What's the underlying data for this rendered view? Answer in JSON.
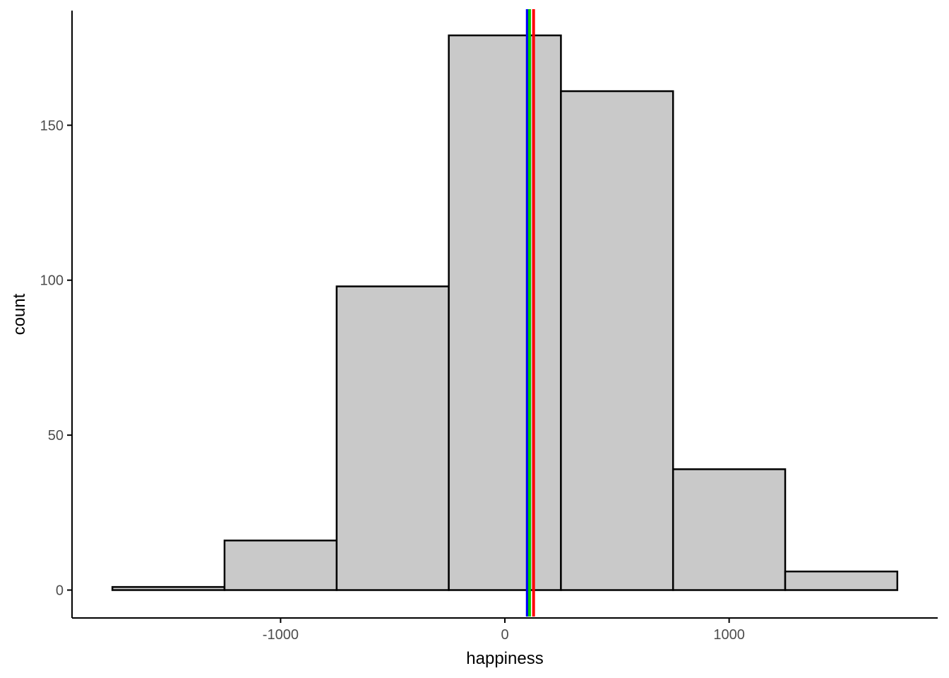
{
  "chart_data": {
    "type": "bar",
    "subtype": "histogram",
    "xlabel": "happiness",
    "ylabel": "count",
    "xlim": [
      -1930,
      1930
    ],
    "ylim": [
      -9,
      187
    ],
    "x_ticks": [
      -1000,
      0,
      1000
    ],
    "y_ticks": [
      0,
      50,
      100,
      150
    ],
    "x_tick_labels": [
      "-1000",
      "0",
      "1000"
    ],
    "y_tick_labels": [
      "0",
      "50",
      "100",
      "150"
    ],
    "grid": false,
    "legend": "none",
    "bins": [
      {
        "x0": -1750,
        "x1": -1250,
        "count": 1
      },
      {
        "x0": -1250,
        "x1": -750,
        "count": 16
      },
      {
        "x0": -750,
        "x1": -250,
        "count": 98
      },
      {
        "x0": -250,
        "x1": 250,
        "count": 179
      },
      {
        "x0": 250,
        "x1": 750,
        "count": 161
      },
      {
        "x0": 750,
        "x1": 1250,
        "count": 39
      },
      {
        "x0": 1250,
        "x1": 1750,
        "count": 6
      }
    ],
    "reference_lines": [
      {
        "x": 100,
        "color": "#0000ff"
      },
      {
        "x": 110,
        "color": "#00cd00"
      },
      {
        "x": 128,
        "color": "#ff0000"
      }
    ],
    "bar_fill": "#c9c9c9",
    "bar_stroke": "#000000"
  }
}
